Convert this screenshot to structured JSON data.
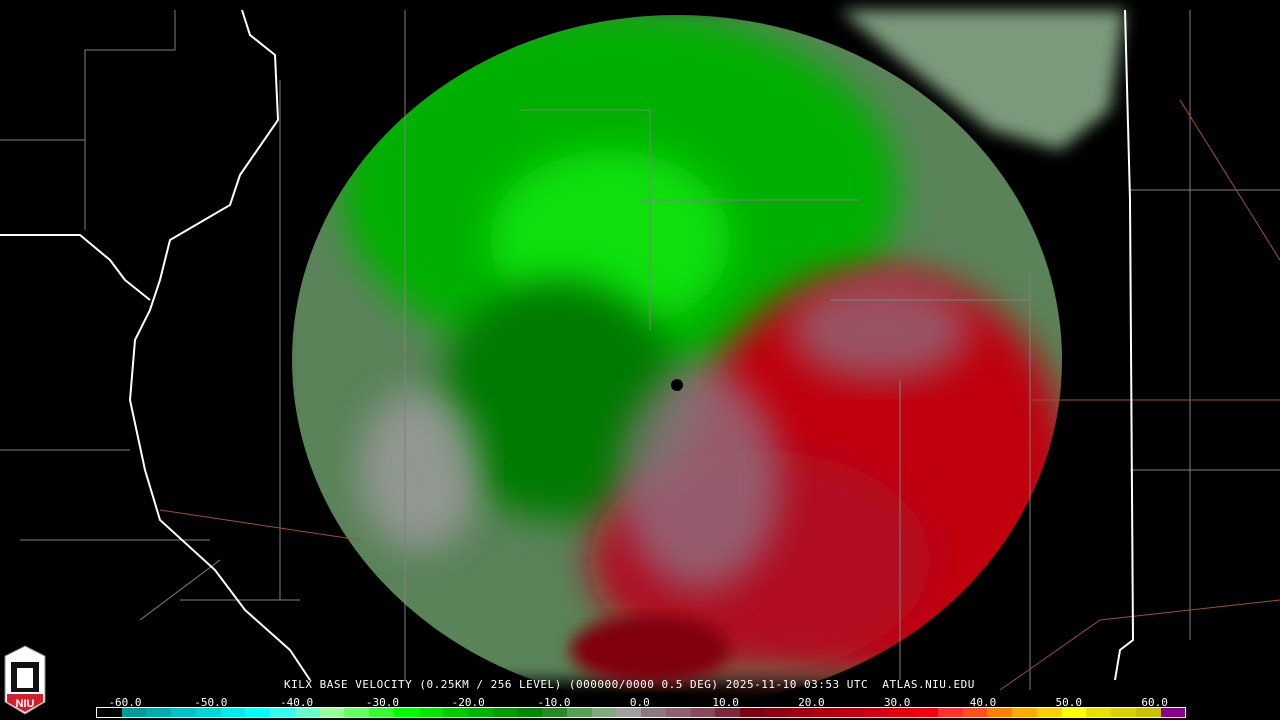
{
  "caption": {
    "radar": "KILX",
    "product": "BASE VELOCITY",
    "resolution": "(0.25KM / 256 LEVEL)",
    "volume": "(000000/0000 0.5 DEG)",
    "datetime": "2025-11-10 03:53 UTC",
    "source": "ATLAS.NIU.EDU"
  },
  "logo": {
    "text": "NIU",
    "color": "#d0202e"
  },
  "colorbar": {
    "ticks": [
      "-60.0",
      "-50.0",
      "-40.0",
      "-30.0",
      "-20.0",
      "-10.0",
      "0.0",
      "10.0",
      "20.0",
      "30.0",
      "40.0",
      "50.0",
      "60.0"
    ],
    "colors": [
      "#000000",
      "#009a9a",
      "#00adad",
      "#00c3c3",
      "#00d8d8",
      "#00ecec",
      "#00ffff",
      "#33ffee",
      "#66ffcc",
      "#99ff99",
      "#66ff66",
      "#33ff33",
      "#00ff00",
      "#00e600",
      "#00cc00",
      "#00b400",
      "#009c00",
      "#008800",
      "#2a8a2a",
      "#55a055",
      "#80aa80",
      "#a0a0a0",
      "#8a7a80",
      "#906070",
      "#8a4858",
      "#7a2a3a",
      "#800010",
      "#900010",
      "#a00010",
      "#b00010",
      "#c00010",
      "#d00010",
      "#e00010",
      "#f00010",
      "#ff3030",
      "#ff5020",
      "#ff8000",
      "#ffaa00",
      "#ffd000",
      "#ffff00",
      "#e8e000",
      "#d8d000",
      "#c8c000",
      "#8a008a"
    ],
    "colors_note_range": [
      -64,
      64
    ]
  },
  "colors": {
    "inbound": "#00c000",
    "outbound": "#c00010",
    "neutral": "#909090",
    "state_border": "#ffffff",
    "county_border": "#808080",
    "highway": "#a05030"
  }
}
